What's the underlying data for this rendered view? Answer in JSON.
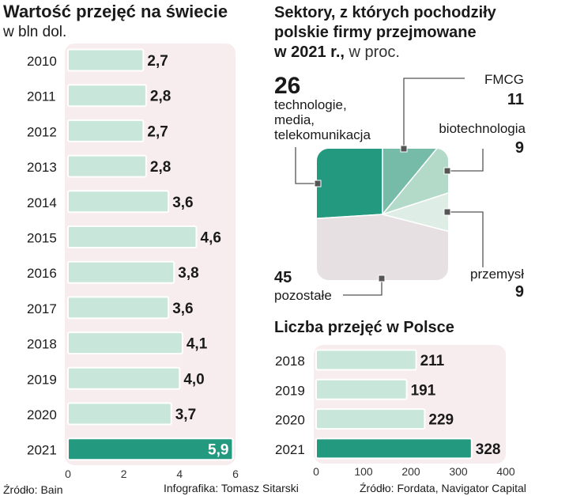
{
  "chart_data": [
    {
      "type": "bar",
      "orientation": "horizontal",
      "title": "Wartość przejęć na świecie",
      "subtitle": "w bln dol.",
      "categories": [
        "2010",
        "2011",
        "2012",
        "2013",
        "2014",
        "2015",
        "2016",
        "2017",
        "2018",
        "2019",
        "2020",
        "2021"
      ],
      "values": [
        2.7,
        2.8,
        2.7,
        2.8,
        3.6,
        4.6,
        3.8,
        3.6,
        4.1,
        4.0,
        3.7,
        5.9
      ],
      "value_labels": [
        "2,7",
        "2,8",
        "2,7",
        "2,8",
        "3,6",
        "4,6",
        "3,8",
        "3,6",
        "4,1",
        "4,0",
        "3,7",
        "5,9"
      ],
      "highlight_category": "2021",
      "xlim": [
        0,
        6
      ],
      "xticks": [
        "0",
        "2",
        "4",
        "6"
      ],
      "source": "Źródło: Bain"
    },
    {
      "type": "pie",
      "title_line1": "Sektory, z których pochodziły",
      "title_line2": "polskie firmy przejmowane",
      "title_line3_bold": "w 2021 r.,",
      "title_line3_normal": " w proc.",
      "slices": [
        {
          "name_lines": [
            "technologie,",
            "media,",
            "telekomunikacja"
          ],
          "value": 26,
          "label": "26",
          "color": "#239a80"
        },
        {
          "name_lines": [
            "FMCG"
          ],
          "value": 11,
          "label": "11",
          "color": "#76bba8"
        },
        {
          "name_lines": [
            "biotechnologia"
          ],
          "value": 9,
          "label": "9",
          "color": "#b3dac9"
        },
        {
          "name_lines": [
            "przemysł"
          ],
          "value": 9,
          "label": "9",
          "color": "#deeee7"
        },
        {
          "name_lines": [
            "pozostałe"
          ],
          "value": 45,
          "label": "45",
          "color": "#e6e0e2"
        }
      ]
    },
    {
      "type": "bar",
      "orientation": "horizontal",
      "title": "Liczba przejęć w Polsce",
      "categories": [
        "2018",
        "2019",
        "2020",
        "2021"
      ],
      "values": [
        211,
        191,
        229,
        328
      ],
      "value_labels": [
        "211",
        "191",
        "229",
        "328"
      ],
      "highlight_category": "2021",
      "xlim": [
        0,
        400
      ],
      "xticks": [
        "0",
        "100",
        "200",
        "300",
        "400"
      ],
      "source": "Źródło: Fordata, Navigator Capital"
    }
  ],
  "credit": "Infografika: Tomasz Sitarski",
  "colors": {
    "bar_fill": "#c9e6da",
    "bar_highlight": "#239a80",
    "panel_bg": "#f7ecee",
    "connector": "#555555"
  }
}
